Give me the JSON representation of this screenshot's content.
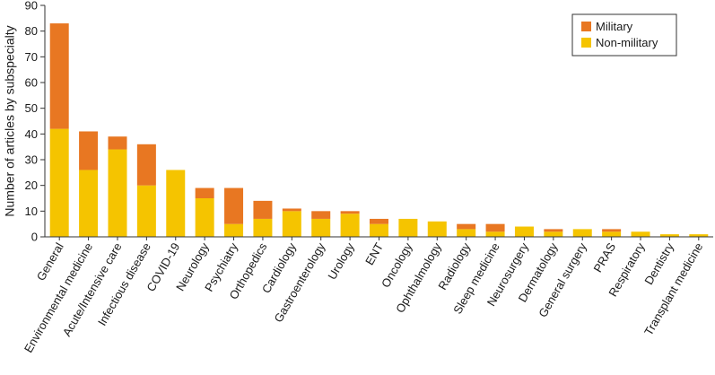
{
  "chart_data": {
    "type": "bar",
    "stacked": true,
    "ylabel": "Number of articles by subspecialty",
    "xlabel": "",
    "ylim": [
      0,
      90
    ],
    "yticks": [
      0,
      10,
      20,
      30,
      40,
      50,
      60,
      70,
      80,
      90
    ],
    "grid": false,
    "legend_position": "top-right",
    "categories": [
      "General",
      "Environmental medicine",
      "Acute/Intensive care",
      "Infectious disease",
      "COVID-19",
      "Neurology",
      "Psychiatry",
      "Orthopedics",
      "Cardiology",
      "Gastroenterology",
      "Urology",
      "ENT",
      "Oncology",
      "Ophthalmology",
      "Radiology",
      "Sleep medicine",
      "Neurosurgery",
      "Dermatology",
      "General surgery",
      "PRAS",
      "Respiratory",
      "Dentistry",
      "Transplant medicine"
    ],
    "series": [
      {
        "name": "Non-military",
        "color": "#f5c400",
        "values": [
          42,
          26,
          34,
          20,
          26,
          15,
          5,
          7,
          10,
          7,
          9,
          5,
          7,
          6,
          3,
          2,
          4,
          2,
          3,
          2,
          2,
          1,
          1
        ]
      },
      {
        "name": "Military",
        "color": "#e87722",
        "values": [
          41,
          15,
          5,
          16,
          0,
          4,
          14,
          7,
          1,
          3,
          1,
          2,
          0,
          0,
          2,
          3,
          0,
          1,
          0,
          1,
          0,
          0,
          0
        ]
      }
    ],
    "legend": [
      "Military",
      "Non-military"
    ]
  }
}
